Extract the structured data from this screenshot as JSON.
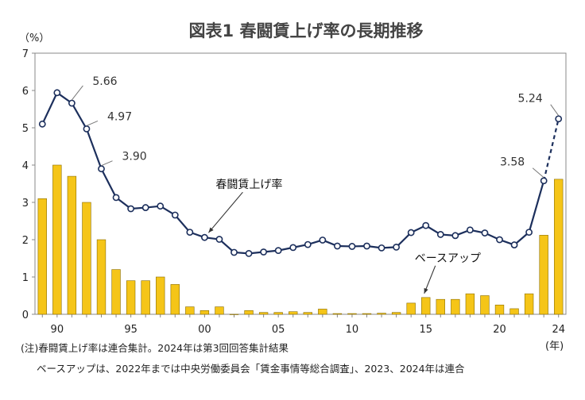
{
  "chart_data": {
    "type": "bar+line",
    "title": "図表1 春闘賃上げ率の長期推移",
    "ylabel": "（%）",
    "xunit": "(年)",
    "ylim": [
      0,
      7
    ],
    "yticks": [
      0,
      1,
      2,
      3,
      4,
      5,
      6,
      7
    ],
    "xlim": [
      1989,
      2024
    ],
    "x": [
      1989,
      1990,
      1991,
      1992,
      1993,
      1994,
      1995,
      1996,
      1997,
      1998,
      1999,
      2000,
      2001,
      2002,
      2003,
      2004,
      2005,
      2006,
      2007,
      2008,
      2009,
      2010,
      2011,
      2012,
      2013,
      2014,
      2015,
      2016,
      2017,
      2018,
      2019,
      2020,
      2021,
      2022,
      2023,
      2024
    ],
    "xtick_labels": [
      {
        "x": 1990,
        "label": "90"
      },
      {
        "x": 1995,
        "label": "95"
      },
      {
        "x": 2000,
        "label": "00"
      },
      {
        "x": 2005,
        "label": "05"
      },
      {
        "x": 2010,
        "label": "10"
      },
      {
        "x": 2015,
        "label": "15"
      },
      {
        "x": 2020,
        "label": "20"
      },
      {
        "x": 2024,
        "label": "24"
      }
    ],
    "series": [
      {
        "name": "春闘賃上げ率",
        "kind": "line",
        "color": "#1c2f5c",
        "values": [
          5.1,
          5.94,
          5.66,
          4.97,
          3.9,
          3.13,
          2.83,
          2.86,
          2.9,
          2.66,
          2.2,
          2.06,
          2.01,
          1.66,
          1.63,
          1.67,
          1.71,
          1.79,
          1.87,
          1.99,
          1.83,
          1.82,
          1.83,
          1.78,
          1.8,
          2.19,
          2.38,
          2.14,
          2.11,
          2.26,
          2.18,
          2.0,
          1.86,
          2.2,
          3.58,
          5.24
        ],
        "dashed_from": 2023
      },
      {
        "name": "ベースアップ",
        "kind": "bar",
        "color": "#f5c518",
        "values": [
          3.1,
          4.0,
          3.7,
          3.0,
          2.0,
          1.2,
          0.9,
          0.9,
          1.0,
          0.8,
          0.2,
          0.1,
          0.2,
          0.0,
          0.1,
          0.05,
          0.05,
          0.07,
          0.05,
          0.14,
          0.02,
          0.02,
          0.02,
          0.03,
          0.05,
          0.3,
          0.45,
          0.4,
          0.4,
          0.55,
          0.5,
          0.25,
          0.15,
          0.55,
          2.12,
          3.62
        ]
      }
    ],
    "annotations": [
      {
        "text": "5.66",
        "x": 1991
      },
      {
        "text": "4.97",
        "x": 1992
      },
      {
        "text": "3.90",
        "x": 1993
      },
      {
        "text": "3.58",
        "x": 2023
      },
      {
        "text": "5.24",
        "x": 2024
      }
    ],
    "series_labels": [
      {
        "text": "春闘賃上げ率",
        "series": 0
      },
      {
        "text": "ベースアップ",
        "series": 1
      }
    ]
  },
  "notes": {
    "line1": "(注)春闘賃上げ率は連合集計。2024年は第3回回答集計結果",
    "line2": "ベースアップは、2022年までは中央労働委員会「賃金事情等総合調査」、2023、2024年は連合"
  }
}
